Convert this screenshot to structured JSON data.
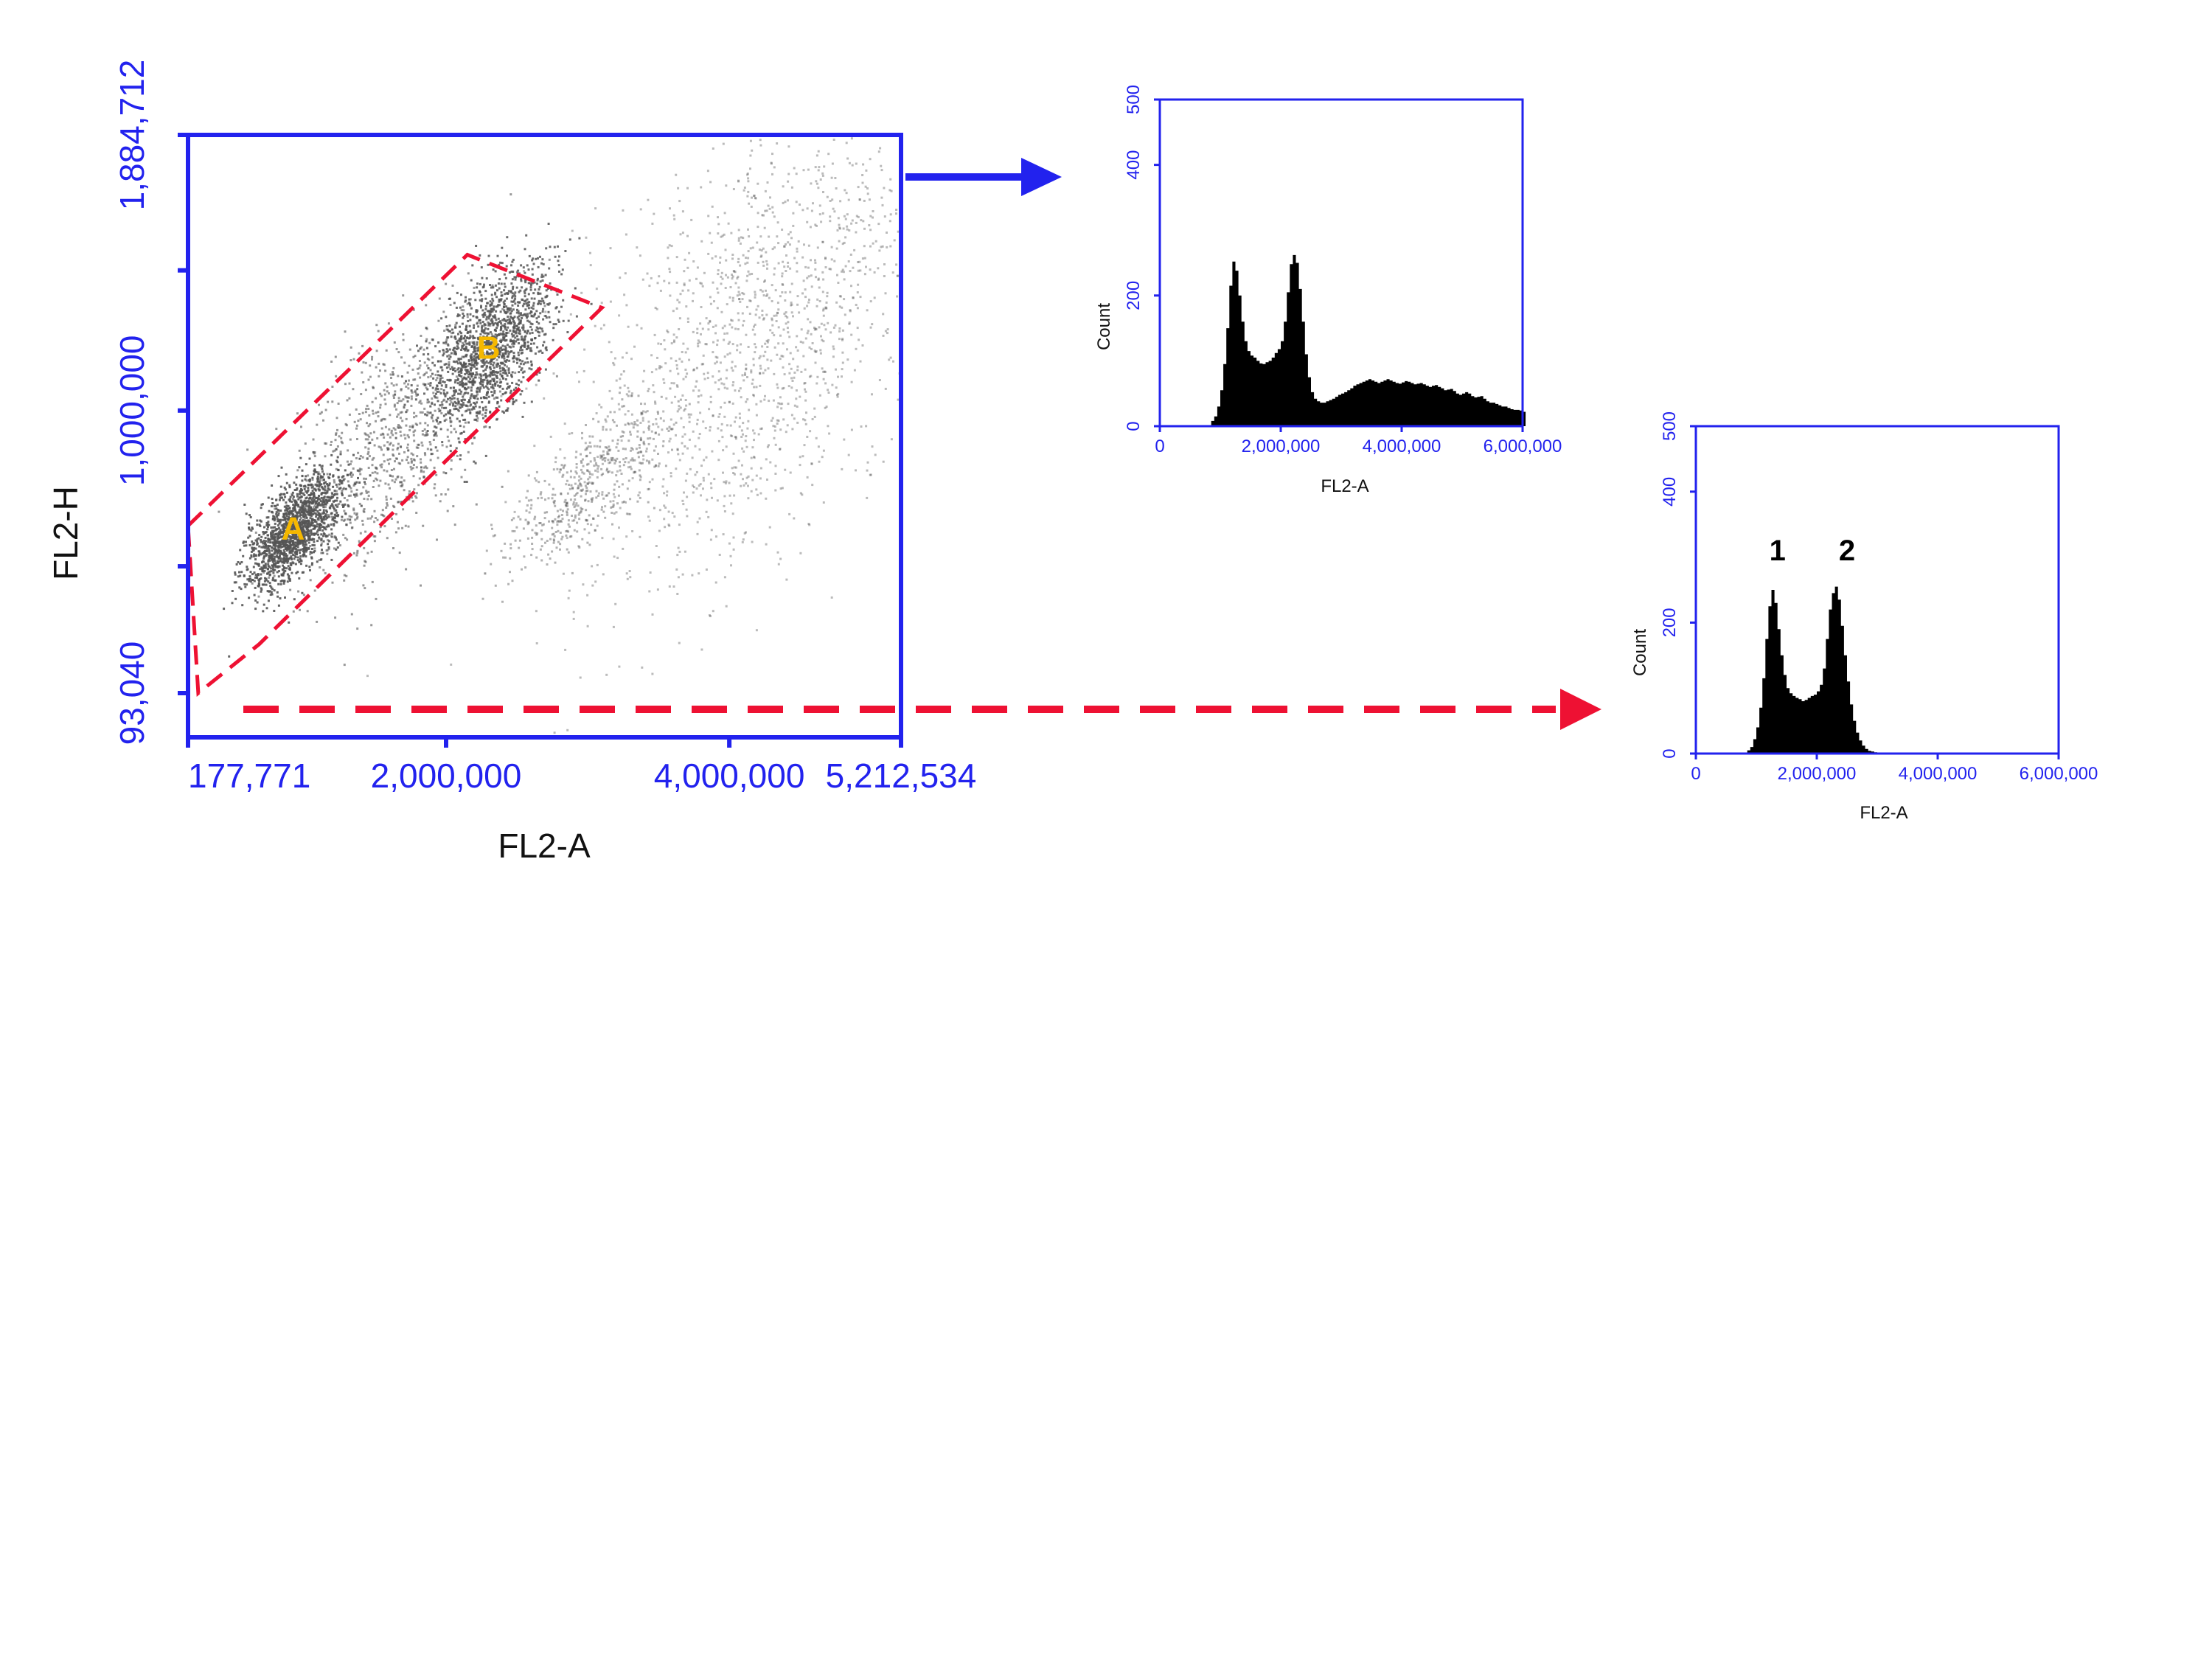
{
  "colors": {
    "axis": "#2222ee",
    "gate": "#ee1133",
    "histogram_fill": "#000000",
    "peak_label": "#f5b800",
    "dots": "#555555"
  },
  "chart_data": [
    {
      "type": "scatter",
      "title": "",
      "xlabel": "FL2-A",
      "ylabel": "FL2-H",
      "xlim": [
        177771,
        5212534
      ],
      "ylim": [
        93040,
        1884712
      ],
      "x_tick_labels": [
        "177,771",
        "2,000,000",
        "4,000,000",
        "5,212,534"
      ],
      "x_tick_values": [
        177771,
        2000000,
        4000000,
        5212534
      ],
      "y_tick_labels": [
        "93,040",
        "1,000,000",
        "1,884,712"
      ],
      "y_tick_values": [
        93040,
        1000000,
        1884712
      ],
      "populations": [
        {
          "label": "A",
          "x": 920000,
          "y": 620000
        },
        {
          "label": "B",
          "x": 2300000,
          "y": 1200000
        }
      ],
      "gate": {
        "shape": "polygon",
        "style": "dashed",
        "vertices": [
          [
            177771,
            630000
          ],
          [
            2150000,
            1500000
          ],
          [
            3100000,
            1330000
          ],
          [
            680000,
            250000
          ],
          [
            250000,
            93040
          ]
        ]
      },
      "grid": false
    },
    {
      "type": "histogram",
      "title": "",
      "xlabel": "FL2-A",
      "ylabel": "Count",
      "xlim": [
        0,
        6000000
      ],
      "ylim": [
        0,
        500
      ],
      "x_tick_labels": [
        "0",
        "2,000,000",
        "4,000,000",
        "6,000,000"
      ],
      "x_tick_values": [
        0,
        2000000,
        4000000,
        6000000
      ],
      "y_tick_labels": [
        "0",
        "200",
        "400",
        "500"
      ],
      "y_tick_values": [
        0,
        200,
        400,
        500
      ],
      "x": [
        850000,
        900000,
        950000,
        1000000,
        1050000,
        1100000,
        1150000,
        1200000,
        1250000,
        1300000,
        1350000,
        1400000,
        1450000,
        1500000,
        1550000,
        1600000,
        1650000,
        1700000,
        1750000,
        1800000,
        1850000,
        1900000,
        1950000,
        2000000,
        2050000,
        2100000,
        2150000,
        2200000,
        2250000,
        2300000,
        2350000,
        2400000,
        2450000,
        2500000,
        2550000,
        2600000,
        2650000,
        2700000,
        2750000,
        2800000,
        2850000,
        2900000,
        2950000,
        3000000,
        3050000,
        3100000,
        3150000,
        3200000,
        3250000,
        3300000,
        3350000,
        3400000,
        3450000,
        3500000,
        3550000,
        3600000,
        3650000,
        3700000,
        3750000,
        3800000,
        3850000,
        3900000,
        3950000,
        4000000,
        4050000,
        4100000,
        4150000,
        4200000,
        4250000,
        4300000,
        4350000,
        4400000,
        4450000,
        4500000,
        4550000,
        4600000,
        4650000,
        4700000,
        4750000,
        4800000,
        4850000,
        4900000,
        4950000,
        5000000,
        5050000,
        5100000,
        5150000,
        5200000,
        5250000,
        5300000,
        5350000,
        5400000,
        5450000,
        5500000,
        5550000,
        5600000,
        5650000,
        5700000,
        5750000,
        5800000,
        5850000,
        5900000,
        5950000,
        6000000
      ],
      "values": [
        8,
        15,
        30,
        55,
        95,
        150,
        215,
        252,
        238,
        200,
        160,
        130,
        115,
        108,
        105,
        100,
        96,
        95,
        98,
        100,
        105,
        112,
        118,
        130,
        160,
        205,
        248,
        262,
        250,
        210,
        160,
        110,
        75,
        52,
        42,
        38,
        36,
        36,
        38,
        40,
        42,
        45,
        48,
        50,
        52,
        55,
        58,
        62,
        64,
        66,
        68,
        70,
        72,
        70,
        68,
        66,
        68,
        70,
        72,
        70,
        68,
        66,
        65,
        67,
        69,
        68,
        66,
        64,
        65,
        66,
        64,
        62,
        60,
        62,
        63,
        60,
        58,
        55,
        56,
        57,
        54,
        50,
        48,
        50,
        52,
        50,
        46,
        44,
        45,
        46,
        42,
        38,
        36,
        36,
        34,
        32,
        30,
        30,
        28,
        26,
        25,
        25,
        24,
        22
      ],
      "grid": false
    },
    {
      "type": "histogram",
      "title": "",
      "xlabel": "FL2-A",
      "ylabel": "Count",
      "xlim": [
        0,
        6000000
      ],
      "ylim": [
        0,
        500
      ],
      "x_tick_labels": [
        "0",
        "2,000,000",
        "4,000,000",
        "6,000,000"
      ],
      "x_tick_values": [
        0,
        2000000,
        4000000,
        6000000
      ],
      "y_tick_labels": [
        "0",
        "200",
        "400",
        "500"
      ],
      "y_tick_values": [
        0,
        200,
        400,
        500
      ],
      "x": [
        850000,
        900000,
        950000,
        1000000,
        1050000,
        1100000,
        1150000,
        1200000,
        1250000,
        1300000,
        1350000,
        1400000,
        1450000,
        1500000,
        1550000,
        1600000,
        1650000,
        1700000,
        1750000,
        1800000,
        1850000,
        1900000,
        1950000,
        2000000,
        2050000,
        2100000,
        2150000,
        2200000,
        2250000,
        2300000,
        2350000,
        2400000,
        2450000,
        2500000,
        2550000,
        2600000,
        2650000,
        2700000,
        2750000,
        2800000,
        2850000,
        2900000,
        2950000,
        3000000,
        3050000,
        3100000,
        3150000,
        3200000
      ],
      "values": [
        5,
        10,
        22,
        40,
        70,
        115,
        175,
        225,
        250,
        230,
        190,
        150,
        120,
        100,
        92,
        88,
        85,
        83,
        80,
        82,
        85,
        88,
        90,
        95,
        105,
        130,
        175,
        220,
        245,
        255,
        235,
        195,
        150,
        110,
        75,
        50,
        32,
        20,
        12,
        7,
        4,
        3,
        2,
        1,
        1,
        0,
        0,
        0
      ],
      "peak_labels": [
        {
          "label": "1",
          "x": 1350000
        },
        {
          "label": "2",
          "x": 2500000
        }
      ],
      "grid": false
    }
  ]
}
